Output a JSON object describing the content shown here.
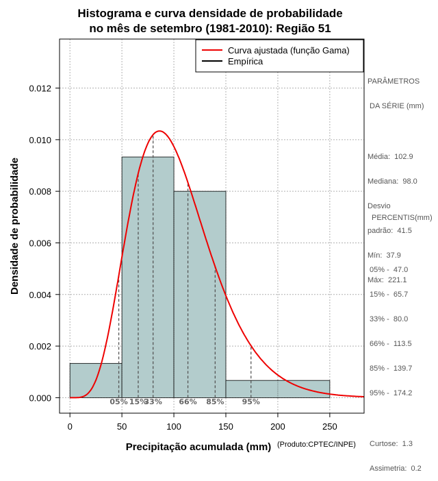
{
  "chart_data": {
    "type": "bar",
    "title_line1": "Histograma e curva densidade de probabilidade",
    "title_line2": "no mês de setembro (1981-2010): Região 51",
    "xlabel": "Precipitação acumulada (mm)",
    "ylabel": "Densidade de probabilidade",
    "credit": "(Produto:CPTEC/INPE)",
    "xlim": [
      -10,
      283
    ],
    "ylim": [
      -0.0006,
      0.0139
    ],
    "x_ticks": [
      0,
      50,
      100,
      150,
      200,
      250
    ],
    "y_ticks": [
      0.0,
      0.002,
      0.004,
      0.006,
      0.008,
      0.01,
      0.012
    ],
    "y_tick_labels": [
      "0.000",
      "0.002",
      "0.004",
      "0.006",
      "0.008",
      "0.010",
      "0.012"
    ],
    "bins": [
      {
        "from": 0,
        "to": 50,
        "density": 0.00133
      },
      {
        "from": 50,
        "to": 100,
        "density": 0.00933
      },
      {
        "from": 100,
        "to": 150,
        "density": 0.008
      },
      {
        "from": 150,
        "to": 250,
        "density": 0.00067
      }
    ],
    "bar_color": "#b3cccc",
    "curve": {
      "name": "Curva ajustada (função Gama)",
      "distribution": "gamma",
      "mean": 102.9,
      "sd": 41.5,
      "color": "#ee0000"
    },
    "empirical": {
      "name": "Empírica",
      "color": "#000000"
    },
    "percentile_lines": [
      {
        "label": "05%",
        "value": 47.0
      },
      {
        "label": "15%",
        "value": 65.7
      },
      {
        "label": "33%",
        "value": 80.0
      },
      {
        "label": "66%",
        "value": 113.5
      },
      {
        "label": "85%",
        "value": 139.7
      },
      {
        "label": "95%",
        "value": 174.2
      }
    ],
    "legend_position": "top-right"
  },
  "stats_panel": {
    "heading_line1": "PARÂMETROS",
    "heading_line2": " DA SÉRIE (mm)",
    "items": [
      "Média:  102.9",
      "Mediana:  98.0",
      "Desvio",
      "padrão:  41.5",
      "Mín:  37.9",
      "Máx:  221.1"
    ]
  },
  "percentiles_panel": {
    "heading": "PERCENTIS(mm)",
    "items": [
      "05% -  47.0",
      "15% -  65.7",
      "33% -  80.0",
      "66% -  113.5",
      "85% -  139.7",
      "95% -  174.2"
    ],
    "extra": [
      "Curtose:  1.3",
      "Assimetria:  0.2"
    ]
  }
}
